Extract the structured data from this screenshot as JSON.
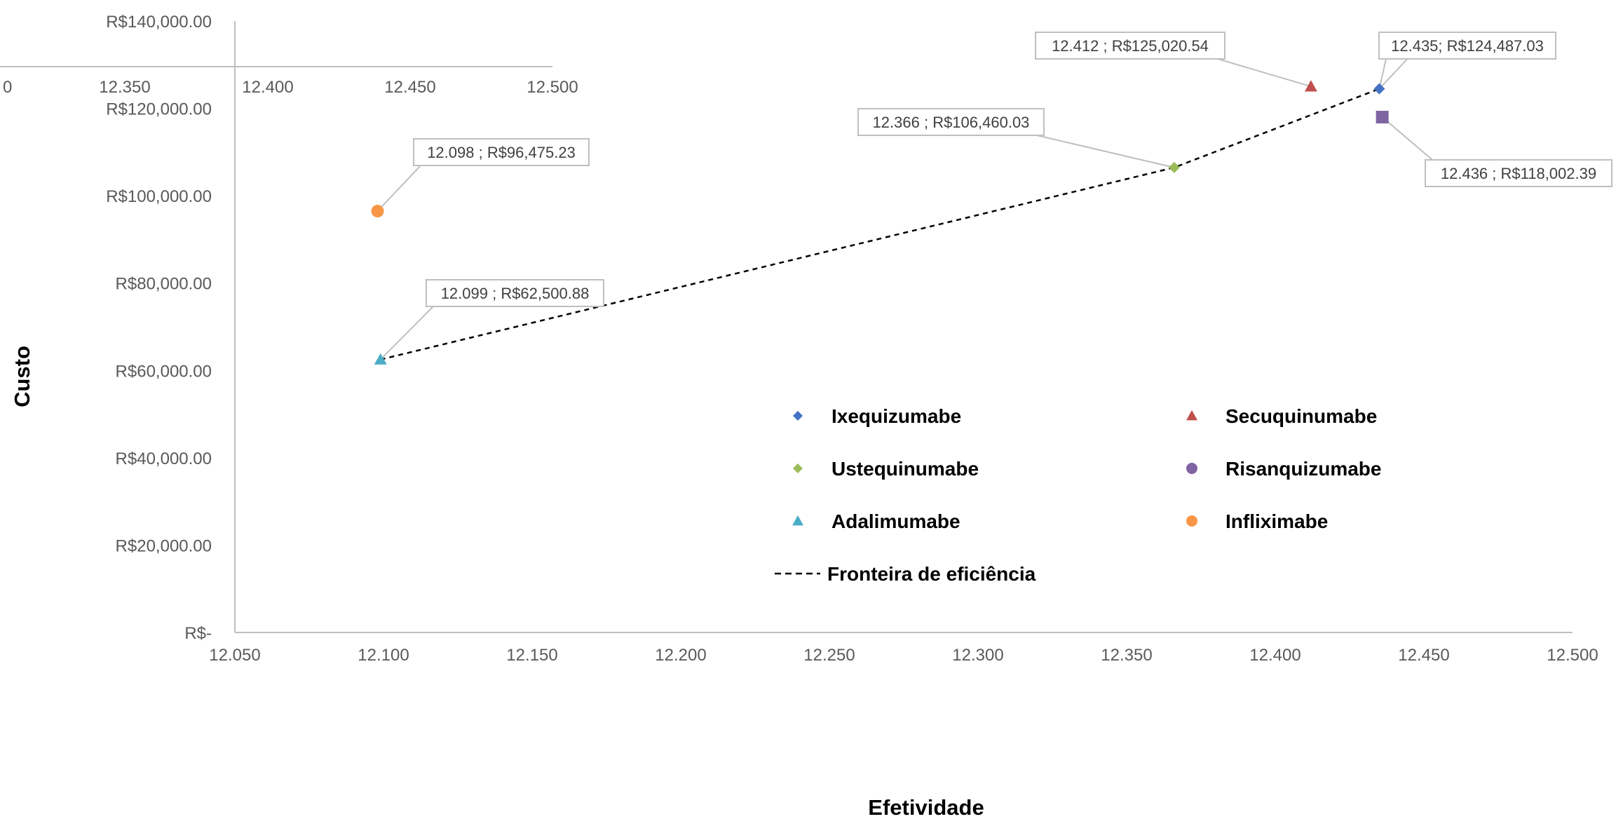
{
  "chart_data": {
    "type": "scatter",
    "xlabel": "Efetividade",
    "ylabel": "Custo",
    "xlim": [
      12.05,
      12.5
    ],
    "ylim": [
      0,
      140000
    ],
    "x_ticks": [
      12.05,
      12.1,
      12.15,
      12.2,
      12.25,
      12.3,
      12.35,
      12.4,
      12.45,
      12.5
    ],
    "x_tick_labels": [
      "12.050",
      "12.100",
      "12.150",
      "12.200",
      "12.250",
      "12.300",
      "12.350",
      "12.400",
      "12.450",
      "12.500"
    ],
    "y_ticks": [
      0,
      20000,
      40000,
      60000,
      80000,
      100000,
      120000,
      140000
    ],
    "y_tick_labels": [
      "R$-",
      "R$20,000.00",
      "R$40,000.00",
      "R$60,000.00",
      "R$80,000.00",
      "R$100,000.00",
      "R$120,000.00",
      "R$140,000.00"
    ],
    "grid": false,
    "legend_position": "inside-lower-center",
    "series": [
      {
        "name": "Ixequizumabe",
        "marker": "diamond",
        "color": "#4472C4",
        "points": [
          {
            "x": 12.435,
            "y": 124487.03,
            "label": "12.435;  R$124,487.03"
          }
        ]
      },
      {
        "name": "Secuquinumabe",
        "marker": "triangle",
        "color": "#C0504D",
        "points": [
          {
            "x": 12.412,
            "y": 125020.54,
            "label": "12.412 ;  R$125,020.54"
          }
        ]
      },
      {
        "name": "Ustequinumabe",
        "marker": "diamond",
        "color": "#9BBB59",
        "points": [
          {
            "x": 12.366,
            "y": 106460.03,
            "label": "12.366 ;  R$106,460.03"
          }
        ]
      },
      {
        "name": "Risanquizumabe",
        "marker": "circle",
        "color": "#8064A2",
        "points": [
          {
            "x": 12.436,
            "y": 118002.39,
            "label": "12.436 ;  R$118,002.39"
          }
        ]
      },
      {
        "name": "Adalimumabe",
        "marker": "triangle",
        "color": "#4BACC6",
        "points": [
          {
            "x": 12.099,
            "y": 62500.88,
            "label": "12.099 ;  R$62,500.88"
          }
        ]
      },
      {
        "name": "Infliximabe",
        "marker": "circle",
        "color": "#F79646",
        "points": [
          {
            "x": 12.098,
            "y": 96475.23,
            "label": "12.098 ;  R$96,475.23"
          }
        ]
      }
    ],
    "frontier": {
      "name": "Fronteira de eficiência",
      "style": "dashed",
      "color": "#000000",
      "x": [
        12.099,
        12.366,
        12.435
      ],
      "y": [
        62500.88,
        106460.03,
        124487.03
      ]
    },
    "secondary_x_axis": {
      "tick_labels": [
        "0",
        "12.350",
        "12.400",
        "12.450",
        "12.500"
      ]
    }
  },
  "colors": {
    "axis": "#BFBFBF",
    "tick_text": "#595959",
    "title_text": "#000000",
    "callout_border": "#BFBFBF",
    "callout_text": "#404040"
  }
}
